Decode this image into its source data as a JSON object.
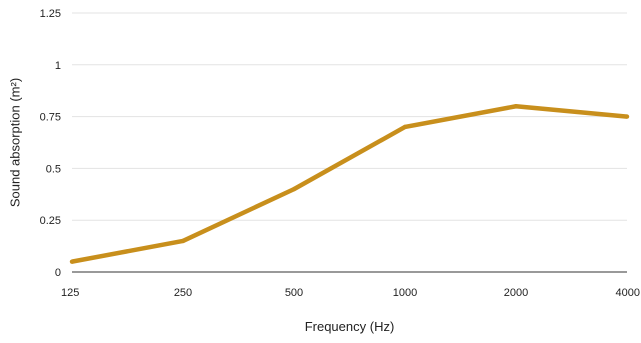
{
  "chart_data": {
    "type": "line",
    "title": "",
    "xlabel": "Frequency (Hz)",
    "ylabel": "Sound absorption (m²)",
    "categories": [
      "125",
      "250",
      "500",
      "1000",
      "2000",
      "4000"
    ],
    "series": [
      {
        "values": [
          0.05,
          0.15,
          0.4,
          0.7,
          0.8,
          0.75
        ]
      }
    ],
    "y_ticks": [
      "0",
      "0.25",
      "0.5",
      "0.75",
      "1",
      "1.25"
    ],
    "ylim": [
      0,
      1.25
    ],
    "grid": "horizontal",
    "legend": "none",
    "colors": {
      "series": "#c88f1c",
      "grid": "#e3e3e3",
      "axis": "#333333",
      "text": "#222222"
    }
  }
}
